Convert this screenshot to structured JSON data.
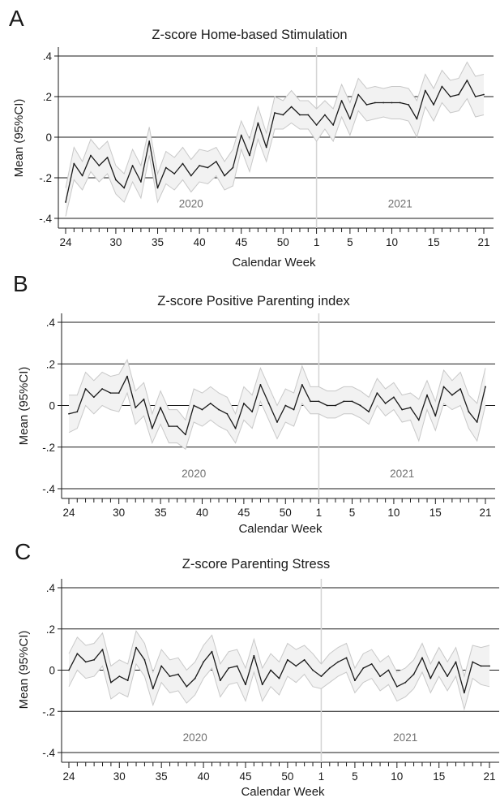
{
  "chart_data": [
    {
      "type": "line",
      "panel_letter": "A",
      "title": "Z-score Home-based Stimulation",
      "xlabel": "Calendar Week",
      "ylabel": "Mean (95%CI)",
      "ylim": [
        -0.4,
        0.4
      ],
      "yticks": [
        ".4",
        ".2",
        "0",
        "-.2",
        "-.4"
      ],
      "xtick_labels": [
        "24",
        "30",
        "35",
        "40",
        "45",
        "50",
        "1",
        "5",
        "10",
        "15",
        "21"
      ],
      "year_labels": [
        "2020",
        "2021"
      ],
      "grid": "horizontal",
      "x": [
        24,
        25,
        26,
        27,
        28,
        29,
        30,
        31,
        32,
        33,
        34,
        35,
        36,
        37,
        38,
        39,
        40,
        41,
        42,
        43,
        44,
        45,
        46,
        47,
        48,
        49,
        50,
        51,
        52,
        53,
        1,
        2,
        3,
        4,
        5,
        6,
        7,
        8,
        9,
        10,
        11,
        12,
        13,
        14,
        15,
        16,
        17,
        18,
        19,
        20,
        21
      ],
      "series": [
        {
          "values": [
            -0.32,
            -0.13,
            -0.19,
            -0.09,
            -0.14,
            -0.1,
            -0.21,
            -0.25,
            -0.14,
            -0.22,
            -0.02,
            -0.25,
            -0.15,
            -0.18,
            -0.13,
            -0.19,
            -0.14,
            -0.15,
            -0.12,
            -0.19,
            -0.15,
            0.01,
            -0.09,
            0.07,
            -0.05,
            0.12,
            0.11,
            0.15,
            0.11,
            0.11,
            0.06,
            0.11,
            0.06,
            0.18,
            0.09,
            0.21,
            0.16,
            0.17,
            0.17,
            0.17,
            0.17,
            0.16,
            0.09,
            0.23,
            0.16,
            0.25,
            0.2,
            0.21,
            0.28,
            0.2,
            0.21
          ]
        },
        {
          "name": "lower",
          "values": [
            -0.39,
            -0.21,
            -0.26,
            -0.17,
            -0.22,
            -0.18,
            -0.28,
            -0.32,
            -0.22,
            -0.3,
            -0.09,
            -0.32,
            -0.23,
            -0.26,
            -0.21,
            -0.27,
            -0.22,
            -0.23,
            -0.19,
            -0.26,
            -0.24,
            -0.06,
            -0.17,
            -0.01,
            -0.12,
            0.04,
            0.04,
            0.07,
            0.04,
            0.04,
            -0.02,
            0.04,
            -0.02,
            0.1,
            0.01,
            0.13,
            0.08,
            0.09,
            0.1,
            0.09,
            0.09,
            0.08,
            0.0,
            0.15,
            0.08,
            0.17,
            0.12,
            0.13,
            0.19,
            0.1,
            0.11
          ]
        },
        {
          "name": "upper",
          "values": [
            -0.25,
            -0.05,
            -0.12,
            -0.01,
            -0.06,
            -0.02,
            -0.14,
            -0.18,
            -0.06,
            -0.14,
            0.05,
            -0.18,
            -0.07,
            -0.1,
            -0.05,
            -0.11,
            -0.06,
            -0.07,
            -0.05,
            -0.12,
            -0.06,
            0.08,
            -0.01,
            0.15,
            0.02,
            0.2,
            0.18,
            0.23,
            0.18,
            0.18,
            0.14,
            0.18,
            0.14,
            0.26,
            0.17,
            0.29,
            0.24,
            0.25,
            0.24,
            0.25,
            0.25,
            0.24,
            0.18,
            0.31,
            0.24,
            0.33,
            0.28,
            0.29,
            0.37,
            0.3,
            0.31
          ]
        }
      ]
    },
    {
      "type": "line",
      "panel_letter": "B",
      "title": "Z-score Positive Parenting index",
      "xlabel": "Calendar Week",
      "ylabel": "Mean (95%CI)",
      "ylim": [
        -0.4,
        0.4
      ],
      "yticks": [
        ".4",
        ".2",
        "0",
        "-.2",
        "-.4"
      ],
      "xtick_labels": [
        "24",
        "30",
        "35",
        "40",
        "45",
        "50",
        "1",
        "5",
        "10",
        "15",
        "21"
      ],
      "year_labels": [
        "2020",
        "2021"
      ],
      "grid": "horizontal",
      "x": [
        24,
        25,
        26,
        27,
        28,
        29,
        30,
        31,
        32,
        33,
        34,
        35,
        36,
        37,
        38,
        39,
        40,
        41,
        42,
        43,
        44,
        45,
        46,
        47,
        48,
        49,
        50,
        51,
        52,
        53,
        1,
        2,
        3,
        4,
        5,
        6,
        7,
        8,
        9,
        10,
        11,
        12,
        13,
        14,
        15,
        16,
        17,
        18,
        19,
        20,
        21
      ],
      "series": [
        {
          "values": [
            -0.04,
            -0.03,
            0.08,
            0.04,
            0.08,
            0.06,
            0.06,
            0.14,
            -0.01,
            0.03,
            -0.11,
            -0.01,
            -0.1,
            -0.1,
            -0.14,
            0.0,
            -0.02,
            0.01,
            -0.02,
            -0.04,
            -0.11,
            0.01,
            -0.03,
            0.1,
            0.01,
            -0.08,
            0.0,
            -0.02,
            0.1,
            0.02,
            0.02,
            0.0,
            0.0,
            0.02,
            0.02,
            0.0,
            -0.03,
            0.06,
            0.01,
            0.04,
            -0.02,
            -0.01,
            -0.07,
            0.05,
            -0.05,
            0.09,
            0.05,
            0.08,
            -0.03,
            -0.08,
            0.09
          ]
        },
        {
          "name": "lower",
          "values": [
            -0.13,
            -0.11,
            0.0,
            -0.04,
            0.0,
            -0.02,
            -0.03,
            0.06,
            -0.09,
            -0.05,
            -0.18,
            -0.09,
            -0.18,
            -0.18,
            -0.21,
            -0.08,
            -0.1,
            -0.07,
            -0.1,
            -0.12,
            -0.18,
            -0.07,
            -0.11,
            0.02,
            -0.07,
            -0.16,
            -0.08,
            -0.1,
            0.01,
            -0.04,
            -0.04,
            -0.06,
            -0.06,
            -0.04,
            -0.04,
            -0.06,
            -0.09,
            0.0,
            -0.05,
            -0.02,
            -0.08,
            -0.07,
            -0.17,
            -0.02,
            -0.12,
            0.01,
            -0.02,
            0.0,
            -0.11,
            -0.17,
            0.0
          ]
        },
        {
          "name": "upper",
          "values": [
            0.05,
            0.05,
            0.16,
            0.12,
            0.16,
            0.14,
            0.15,
            0.22,
            0.07,
            0.11,
            -0.04,
            0.07,
            -0.02,
            -0.02,
            -0.07,
            0.08,
            0.06,
            0.09,
            0.06,
            0.04,
            -0.04,
            0.09,
            0.05,
            0.18,
            0.09,
            0.0,
            0.08,
            0.06,
            0.19,
            0.09,
            0.09,
            0.07,
            0.07,
            0.09,
            0.09,
            0.07,
            0.04,
            0.13,
            0.08,
            0.11,
            0.05,
            0.06,
            0.03,
            0.12,
            0.02,
            0.17,
            0.12,
            0.16,
            0.05,
            0.01,
            0.18
          ]
        }
      ]
    },
    {
      "type": "line",
      "panel_letter": "C",
      "title": "Z-score Parenting Stress",
      "xlabel": "Calendar Week",
      "ylabel": "Mean (95%CI)",
      "ylim": [
        -0.4,
        0.4
      ],
      "yticks": [
        ".4",
        ".2",
        "0",
        "-.2",
        "-.4"
      ],
      "xtick_labels": [
        "24",
        "30",
        "35",
        "40",
        "45",
        "50",
        "1",
        "5",
        "10",
        "15",
        "21"
      ],
      "year_labels": [
        "2020",
        "2021"
      ],
      "grid": "horizontal",
      "x": [
        24,
        25,
        26,
        27,
        28,
        29,
        30,
        31,
        32,
        33,
        34,
        35,
        36,
        37,
        38,
        39,
        40,
        41,
        42,
        43,
        44,
        45,
        46,
        47,
        48,
        49,
        50,
        51,
        52,
        53,
        1,
        2,
        3,
        4,
        5,
        6,
        7,
        8,
        9,
        10,
        11,
        12,
        13,
        14,
        15,
        16,
        17,
        18,
        19,
        20,
        21
      ],
      "series": [
        {
          "values": [
            0.0,
            0.08,
            0.04,
            0.05,
            0.1,
            -0.06,
            -0.03,
            -0.05,
            0.11,
            0.05,
            -0.09,
            0.02,
            -0.03,
            -0.02,
            -0.08,
            -0.04,
            0.04,
            0.09,
            -0.05,
            0.01,
            0.02,
            -0.07,
            0.07,
            -0.07,
            0.0,
            -0.04,
            0.05,
            0.02,
            0.05,
            0.0,
            -0.03,
            0.01,
            0.04,
            0.06,
            -0.05,
            0.01,
            0.03,
            -0.03,
            0.0,
            -0.08,
            -0.06,
            -0.02,
            0.06,
            -0.04,
            0.04,
            -0.03,
            0.04,
            -0.11,
            0.04,
            0.02,
            0.02
          ]
        },
        {
          "name": "lower",
          "values": [
            -0.08,
            0.0,
            -0.04,
            -0.03,
            0.02,
            -0.14,
            -0.11,
            -0.13,
            0.03,
            -0.03,
            -0.17,
            -0.06,
            -0.11,
            -0.1,
            -0.16,
            -0.12,
            -0.04,
            0.01,
            -0.13,
            -0.07,
            -0.06,
            -0.15,
            -0.01,
            -0.15,
            -0.08,
            -0.12,
            -0.03,
            -0.06,
            -0.02,
            -0.08,
            -0.09,
            -0.06,
            -0.03,
            -0.01,
            -0.11,
            -0.06,
            -0.04,
            -0.1,
            -0.07,
            -0.15,
            -0.13,
            -0.09,
            -0.01,
            -0.11,
            -0.03,
            -0.1,
            -0.03,
            -0.19,
            -0.04,
            -0.07,
            -0.08
          ]
        },
        {
          "name": "upper",
          "values": [
            0.08,
            0.16,
            0.12,
            0.13,
            0.18,
            0.02,
            0.05,
            0.03,
            0.19,
            0.13,
            -0.01,
            0.1,
            0.05,
            0.06,
            0.0,
            0.04,
            0.12,
            0.17,
            0.03,
            0.09,
            0.1,
            0.01,
            0.15,
            0.01,
            0.08,
            0.04,
            0.13,
            0.1,
            0.12,
            0.08,
            0.03,
            0.08,
            0.11,
            0.13,
            0.01,
            0.08,
            0.1,
            0.04,
            0.07,
            -0.01,
            0.01,
            0.05,
            0.13,
            0.03,
            0.11,
            0.04,
            0.11,
            -0.03,
            0.12,
            0.11,
            0.12
          ]
        }
      ]
    }
  ],
  "colors": {
    "line": "#1a1a1a",
    "ci_band_fill": "#f2f2f2",
    "ci_band_edge": "#c8c8c8",
    "gridline": "#1a1a1a",
    "year_divider": "#d4d4d4",
    "year_label": "#707070",
    "text": "#1a1a1a"
  }
}
